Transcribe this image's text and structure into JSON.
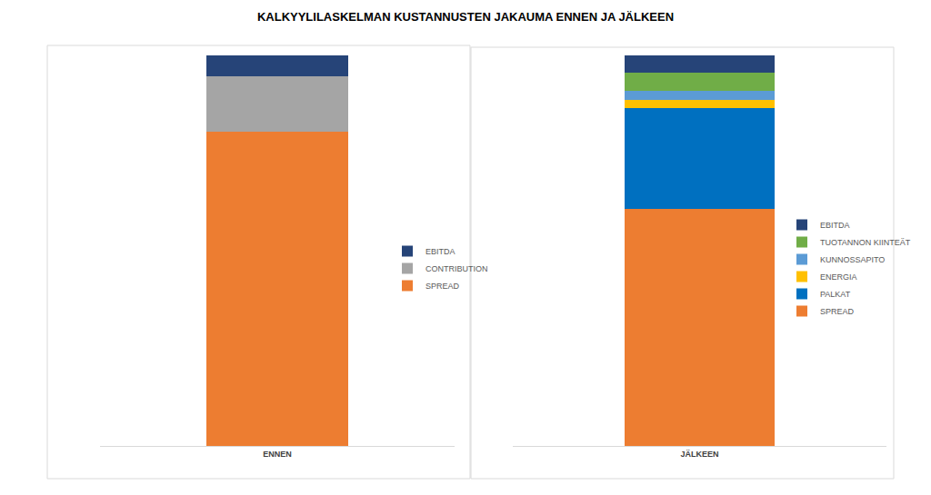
{
  "title": "KALKYYLILASKELMAN KUSTANNUSTEN JAKAUMA ENNEN JA JÄLKEEN",
  "chart_data": [
    {
      "type": "bar",
      "stacked": true,
      "categories": [
        "ENNEN"
      ],
      "ylim": [
        0,
        100
      ],
      "tick_labels": "x",
      "grid": false,
      "legend": "right",
      "series": [
        {
          "name": "SPREAD",
          "color": "#ed7d31",
          "values": [
            80.5
          ]
        },
        {
          "name": "CONTRIBUTION",
          "color": "#a5a5a5",
          "values": [
            14.2
          ]
        },
        {
          "name": "EBITDA",
          "color": "#264478",
          "values": [
            5.3
          ]
        }
      ]
    },
    {
      "type": "bar",
      "stacked": true,
      "categories": [
        "JÄLKEEN"
      ],
      "ylim": [
        0,
        100
      ],
      "tick_labels": "x",
      "grid": false,
      "legend": "right",
      "series": [
        {
          "name": "SPREAD",
          "color": "#ed7d31",
          "values": [
            60.6
          ]
        },
        {
          "name": "PALKAT",
          "color": "#0070c0",
          "values": [
            26.0
          ]
        },
        {
          "name": "ENERGIA",
          "color": "#ffc000",
          "values": [
            2.1
          ]
        },
        {
          "name": "KUNNOSSAPITO",
          "color": "#5b9bd5",
          "values": [
            2.3
          ]
        },
        {
          "name": "TUOTANNON KIINTEÄT",
          "color": "#70ad47",
          "values": [
            4.6
          ]
        },
        {
          "name": "EBITDA",
          "color": "#264478",
          "values": [
            4.4
          ]
        }
      ]
    }
  ]
}
